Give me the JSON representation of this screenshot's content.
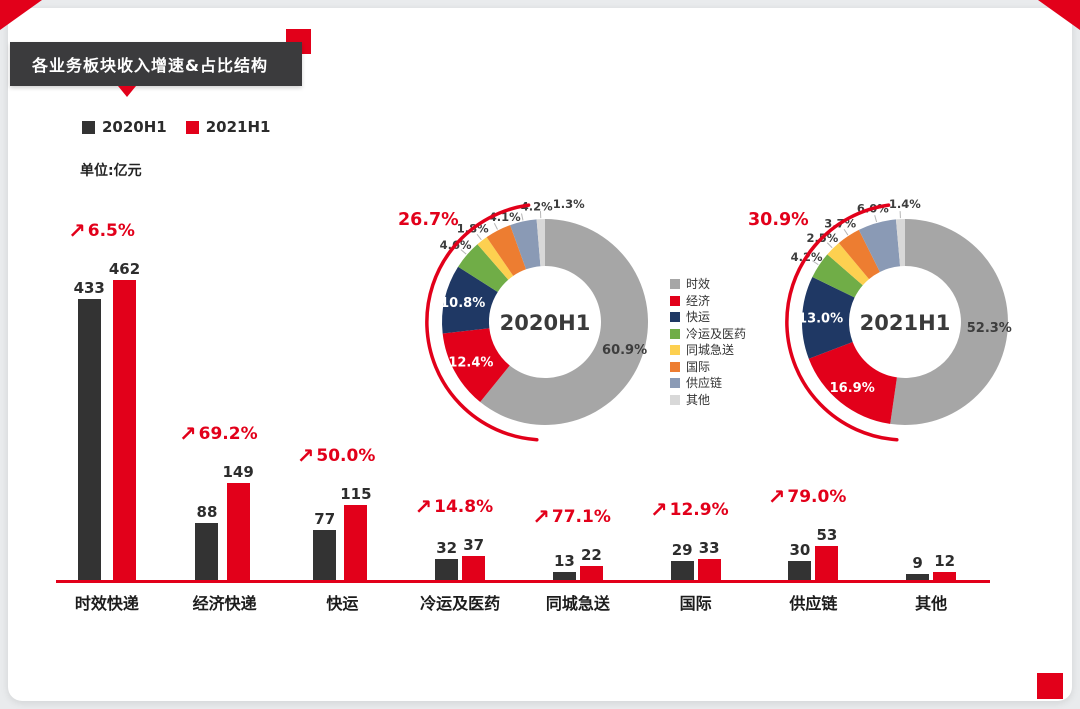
{
  "title": "各业务板块收入增速&占比结构",
  "series_legend": [
    "2020H1",
    "2021H1"
  ],
  "unit_label": "单位:亿元",
  "palette": {
    "red": "#e2001a",
    "dark": "#333333",
    "donut": [
      "#a6a6a6",
      "#e2001a",
      "#1f3864",
      "#70ad47",
      "#fdd050",
      "#ed7d31",
      "#8a9ab5",
      "#d8d8d8"
    ]
  },
  "donut_legend": [
    "时效",
    "经济",
    "快运",
    "冷运及医药",
    "同城急送",
    "国际",
    "供应链",
    "其他"
  ],
  "chart_data": [
    {
      "type": "bar",
      "unit": "亿元",
      "categories": [
        "时效快递",
        "经济快递",
        "快运",
        "冷运及医药",
        "同城急送",
        "国际",
        "供应链",
        "其他"
      ],
      "series": [
        {
          "name": "2020H1",
          "color": "#333333",
          "values": [
            433,
            88,
            77,
            32,
            13,
            29,
            30,
            9
          ]
        },
        {
          "name": "2021H1",
          "color": "#e2001a",
          "values": [
            462,
            149,
            115,
            37,
            22,
            33,
            53,
            12
          ]
        }
      ],
      "growth_labels": [
        "6.5%",
        "69.2%",
        "50.0%",
        "14.8%",
        "77.1%",
        "12.9%",
        "79.0%",
        ""
      ],
      "ylim": [
        0,
        462
      ],
      "grid": false
    },
    {
      "type": "pie",
      "title": "2020H1",
      "labels": [
        "时效",
        "经济",
        "快运",
        "冷运及医药",
        "同城急送",
        "国际",
        "供应链",
        "其他"
      ],
      "values": [
        60.9,
        12.4,
        10.8,
        4.6,
        1.8,
        4.1,
        4.2,
        1.3
      ],
      "annotation": "26.7%",
      "legend_position": "center-between-donuts"
    },
    {
      "type": "pie",
      "title": "2021H1",
      "labels": [
        "时效",
        "经济",
        "快运",
        "冷运及医药",
        "同城急送",
        "国际",
        "供应链",
        "其他"
      ],
      "values": [
        52.3,
        16.9,
        13.0,
        4.2,
        2.5,
        3.7,
        6.0,
        1.4
      ],
      "annotation": "30.9%",
      "legend_position": "center-between-donuts"
    }
  ]
}
